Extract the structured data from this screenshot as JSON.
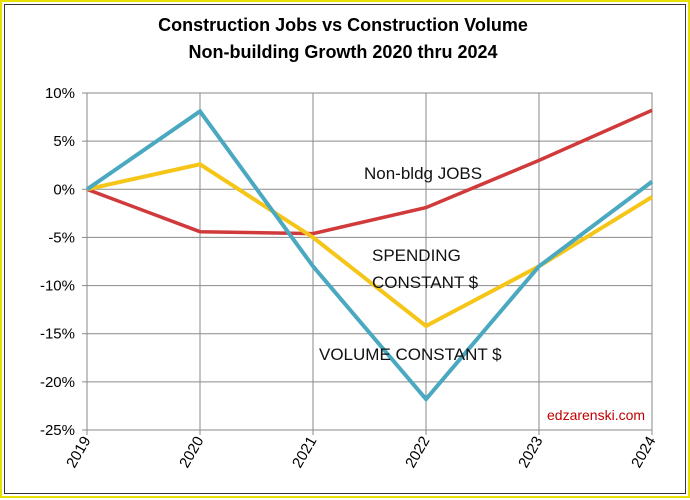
{
  "chart_data": {
    "type": "line",
    "title_lines": [
      "Construction Jobs vs Construction Volume",
      "Non-building Growth 2020 thru 2024"
    ],
    "x": [
      "2019",
      "2020",
      "2021",
      "2022",
      "2023",
      "2024"
    ],
    "ylim": [
      -25,
      10
    ],
    "yticks": [
      10,
      5,
      0,
      -5,
      -10,
      -15,
      -20,
      -25
    ],
    "ytick_labels": [
      "10%",
      "5%",
      "0%",
      "-5%",
      "-10%",
      "-15%",
      "-20%",
      "-25%"
    ],
    "grid": true,
    "series": [
      {
        "name": "Non-bldg JOBS",
        "color": "#d03a3a",
        "values": [
          0,
          -4.4,
          -4.6,
          -1.9,
          3.0,
          8.2
        ]
      },
      {
        "name": "SPENDING CONSTANT $",
        "color": "#f5c518",
        "values": [
          0,
          2.6,
          -5.0,
          -14.2,
          -8.0,
          -0.8
        ]
      },
      {
        "name": "VOLUME CONSTANT $",
        "color": "#4aa9c0",
        "values": [
          0,
          8.1,
          -8.0,
          -21.8,
          -8.0,
          0.8
        ]
      }
    ],
    "annotations": [
      {
        "text": "Non-bldg JOBS"
      },
      {
        "text": "SPENDING"
      },
      {
        "text": "CONSTANT $"
      },
      {
        "text": "VOLUME CONSTANT $"
      }
    ],
    "credit": "edzarenski.com"
  }
}
